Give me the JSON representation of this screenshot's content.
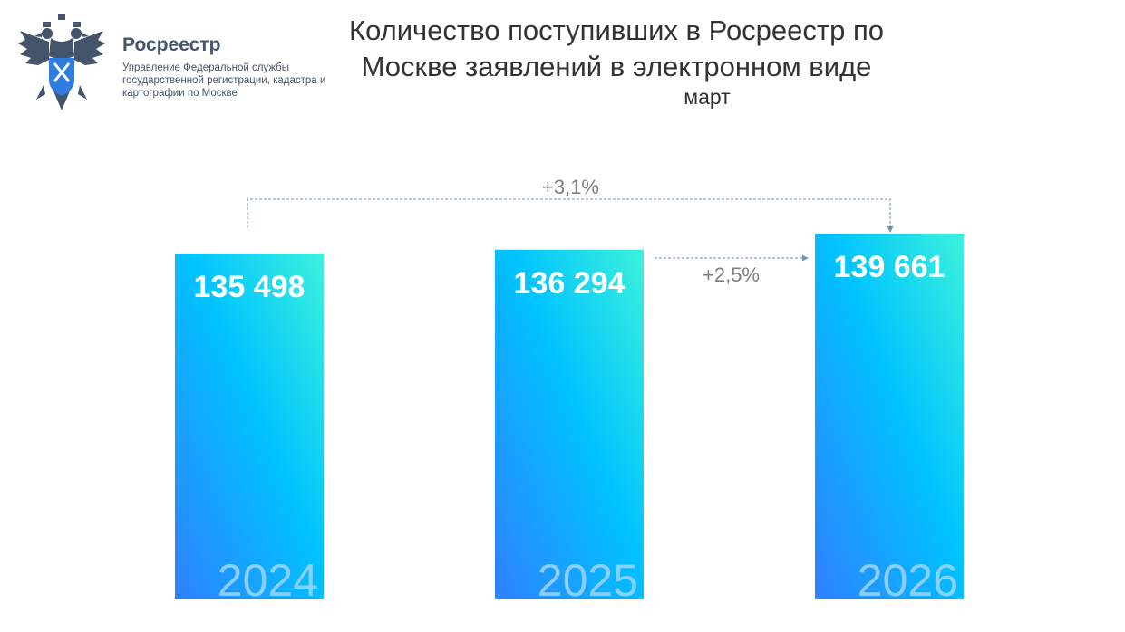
{
  "header": {
    "org_name": "Росреестр",
    "org_subtitle": "Управление Федеральной службы государственной регистрации, кадастра и картографии по Москве",
    "logo_icon": "double-headed-eagle-emblem-icon",
    "title": "Количество поступивших в Росреестр по Москве заявлений в электронном виде",
    "subtitle": "март"
  },
  "chart_data": {
    "type": "bar",
    "title": "Количество поступивших в Росреестр по Москве заявлений в электронном виде",
    "subtitle": "март",
    "categories": [
      "2024",
      "2025",
      "2026"
    ],
    "values": [
      135498,
      136294,
      139661
    ],
    "value_labels": [
      "135 498",
      "136 294",
      "139 661"
    ],
    "xlabel": "",
    "ylabel": "",
    "grid": false,
    "legend": "none",
    "annotations": [
      {
        "text": "+3,1%",
        "from": "2024",
        "to": "2026"
      },
      {
        "text": "+2,5%",
        "from": "2025",
        "to": "2026"
      }
    ],
    "colors": {
      "bar_gradient_start": "#2f80ff",
      "bar_gradient_mid": "#00c3ff",
      "bar_gradient_end": "#3cf2dc",
      "value_label": "#ffffff",
      "year_label": "#9dd6ff",
      "annotation_text": "#7f7f7f",
      "connector": "#6d8fb8"
    }
  }
}
